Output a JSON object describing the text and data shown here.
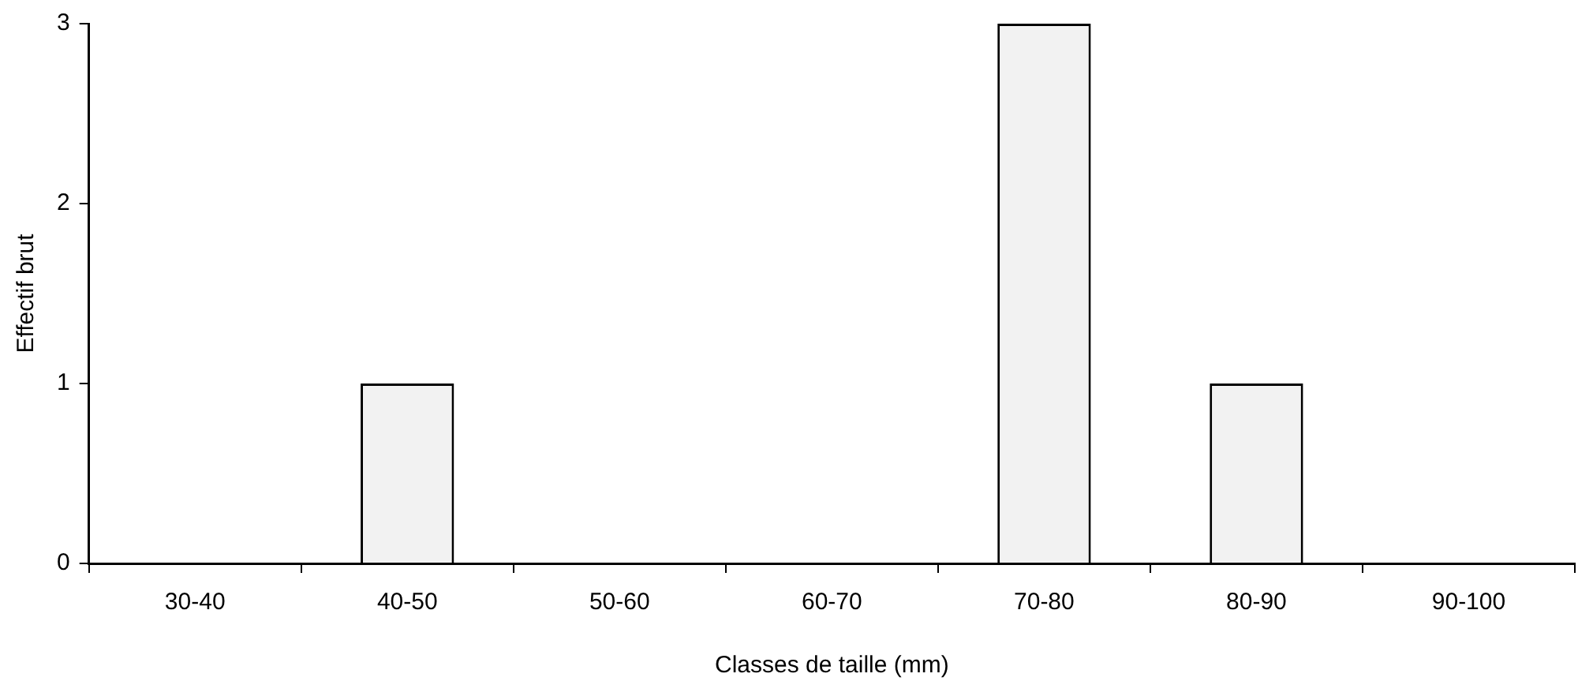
{
  "chart_data": {
    "type": "bar",
    "xlabel": "Classes de taille (mm)",
    "ylabel": "Effectif brut",
    "categories": [
      "30-40",
      "40-50",
      "50-60",
      "60-70",
      "70-80",
      "80-90",
      "90-100"
    ],
    "values": [
      0,
      1,
      0,
      0,
      3,
      1,
      0
    ],
    "color": "#f2f2f2",
    "ylim": [
      0,
      3
    ],
    "yticks": [
      0,
      1,
      2,
      3
    ],
    "grid": false,
    "legend": false
  }
}
